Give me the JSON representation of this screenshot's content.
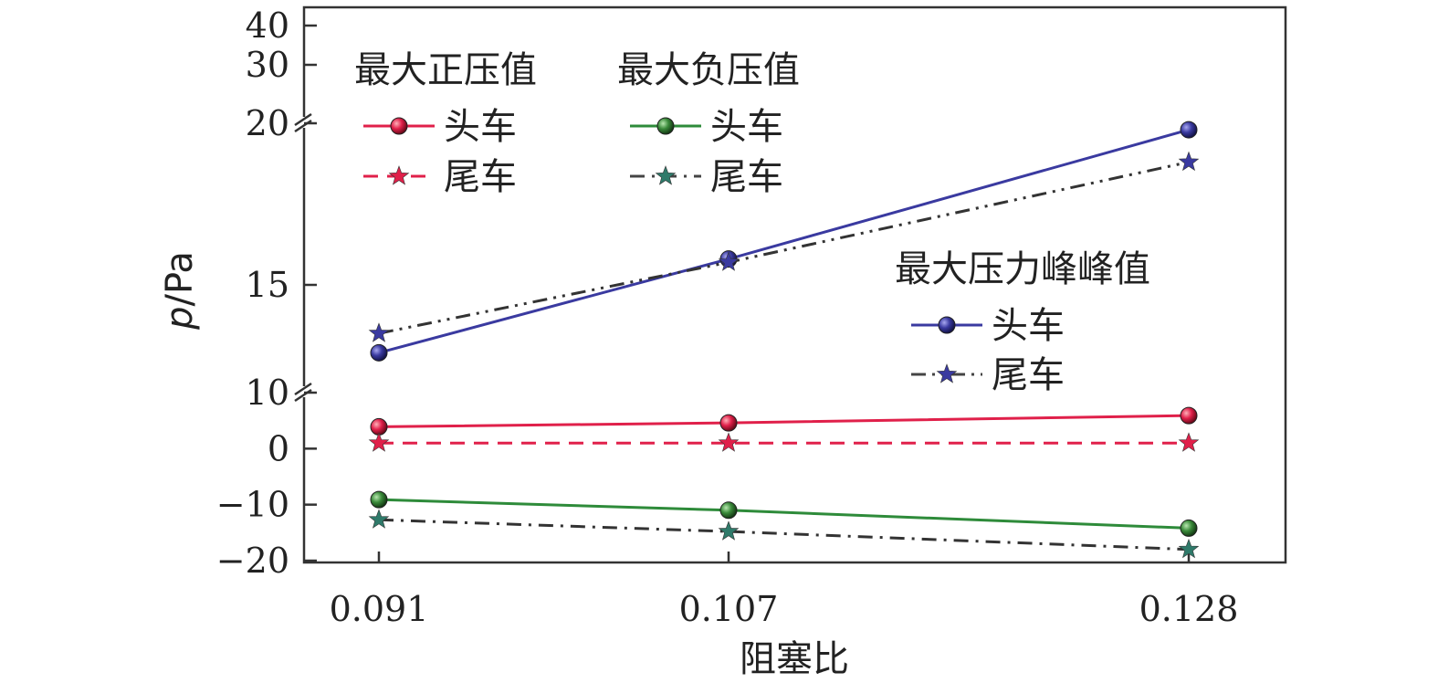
{
  "chart_data": {
    "type": "line",
    "xlabel": "阻塞比",
    "ylabel_italic": "p",
    "ylabel_unit": "/Pa",
    "categories": [
      "0.091",
      "0.107",
      "0.128"
    ],
    "y_axis_segments": [
      {
        "range": [
          -20,
          10
        ],
        "ticks": [
          "10",
          "0",
          "−10",
          "−20"
        ],
        "tick_values": [
          10,
          0,
          -10,
          -20
        ]
      },
      {
        "range": [
          12,
          20
        ],
        "ticks": [
          "20",
          "15"
        ],
        "tick_values": [
          20,
          15
        ]
      },
      {
        "range": [
          25,
          40
        ],
        "ticks": [
          "40",
          "30"
        ],
        "tick_values": [
          40,
          30
        ]
      }
    ],
    "axis_breaks": [
      10,
      20
    ],
    "legend_groups": [
      {
        "title": "最大正压值",
        "items": [
          "头车",
          "尾车"
        ]
      },
      {
        "title": "最大负压值",
        "items": [
          "头车",
          "尾车"
        ]
      },
      {
        "title": "最大压力峰峰值",
        "items": [
          "头车",
          "尾车"
        ]
      }
    ],
    "series": [
      {
        "group": "最大正压值",
        "name": "头车",
        "segment": 0,
        "style": "solid",
        "marker": "ball",
        "color": "#e0204a",
        "values": [
          3.9,
          4.6,
          5.9
        ]
      },
      {
        "group": "最大正压值",
        "name": "尾车",
        "segment": 0,
        "style": "dashed",
        "marker": "star",
        "color": "#e0204a",
        "values": [
          1.0,
          1.0,
          1.0
        ]
      },
      {
        "group": "最大负压值",
        "name": "头车",
        "segment": 0,
        "style": "solid",
        "marker": "ball",
        "color": "#2e8b3a",
        "values": [
          -9.1,
          -11.0,
          -14.2
        ]
      },
      {
        "group": "最大负压值",
        "name": "尾车",
        "segment": 0,
        "style": "dashdot",
        "marker": "star",
        "color": "#2f7a6a",
        "values": [
          -12.7,
          -14.8,
          -18.0
        ]
      },
      {
        "group": "最大压力峰峰值",
        "name": "头车",
        "segment": 1,
        "style": "solid",
        "marker": "ball",
        "color": "#3a3aa0",
        "values": [
          12.9,
          15.8,
          19.8
        ]
      },
      {
        "group": "最大压力峰峰值",
        "name": "尾车",
        "segment": 1,
        "style": "dashdotdot",
        "marker": "star",
        "color": "#3a3aa0",
        "values": [
          13.5,
          15.7,
          18.8
        ]
      }
    ]
  }
}
